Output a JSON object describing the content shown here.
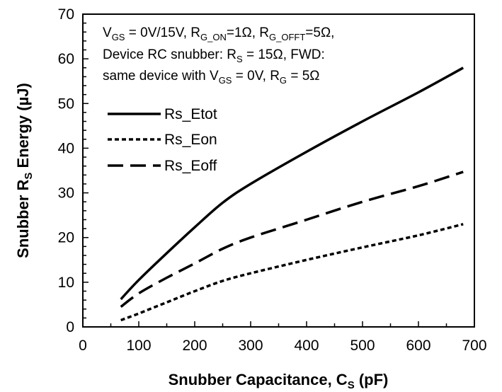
{
  "chart_data": {
    "type": "line",
    "xlabel_main": "Snubber Capacitance, C",
    "xlabel_sub": "S",
    "xlabel_tail": " (pF)",
    "ylabel_main": "Snubber R",
    "ylabel_sub": "S",
    "ylabel_tail": " Energy (µJ)",
    "xlim": [
      0,
      700
    ],
    "ylim": [
      0,
      70
    ],
    "xticks": [
      0,
      100,
      200,
      300,
      400,
      500,
      600,
      700
    ],
    "yticks": [
      0,
      10,
      20,
      30,
      40,
      50,
      60,
      70
    ],
    "grid": false,
    "legend_position": "left",
    "note": [
      {
        "parts": [
          {
            "t": "V"
          },
          {
            "t": "GS",
            "sub": true
          },
          {
            "t": " = 0V/15V, R"
          },
          {
            "t": "G_ON",
            "sub": true
          },
          {
            "t": "=1Ω, R"
          },
          {
            "t": "G_OFFT",
            "sub": true
          },
          {
            "t": "=5Ω,"
          }
        ]
      },
      {
        "parts": [
          {
            "t": "Device RC snubber:   R"
          },
          {
            "t": "S",
            "sub": true
          },
          {
            "t": " = 15Ω, FWD:"
          }
        ]
      },
      {
        "parts": [
          {
            "t": "same device with V"
          },
          {
            "t": "GS",
            "sub": true
          },
          {
            "t": " = 0V, R"
          },
          {
            "t": "G",
            "sub": true
          },
          {
            "t": " = 5Ω"
          }
        ]
      }
    ],
    "series": [
      {
        "name": "Rs_Etot",
        "style": "solid",
        "x": [
          68,
          100,
          150,
          200,
          250,
          300,
          400,
          500,
          600,
          680
        ],
        "y": [
          6.2,
          10.5,
          16.5,
          22.3,
          27.8,
          32,
          39.2,
          46,
          52.5,
          58
        ]
      },
      {
        "name": "Rs_Eon",
        "style": "dotted",
        "x": [
          68,
          100,
          150,
          200,
          250,
          300,
          400,
          500,
          600,
          680
        ],
        "y": [
          1.5,
          3,
          5.5,
          8,
          10.3,
          12,
          15,
          17.8,
          20.5,
          23
        ]
      },
      {
        "name": "Rs_Eoff",
        "style": "dashed",
        "x": [
          68,
          100,
          150,
          200,
          250,
          300,
          400,
          500,
          600,
          680
        ],
        "y": [
          4.5,
          7.5,
          11,
          14.2,
          17.5,
          20,
          24,
          28,
          31.5,
          34.7
        ]
      }
    ]
  }
}
